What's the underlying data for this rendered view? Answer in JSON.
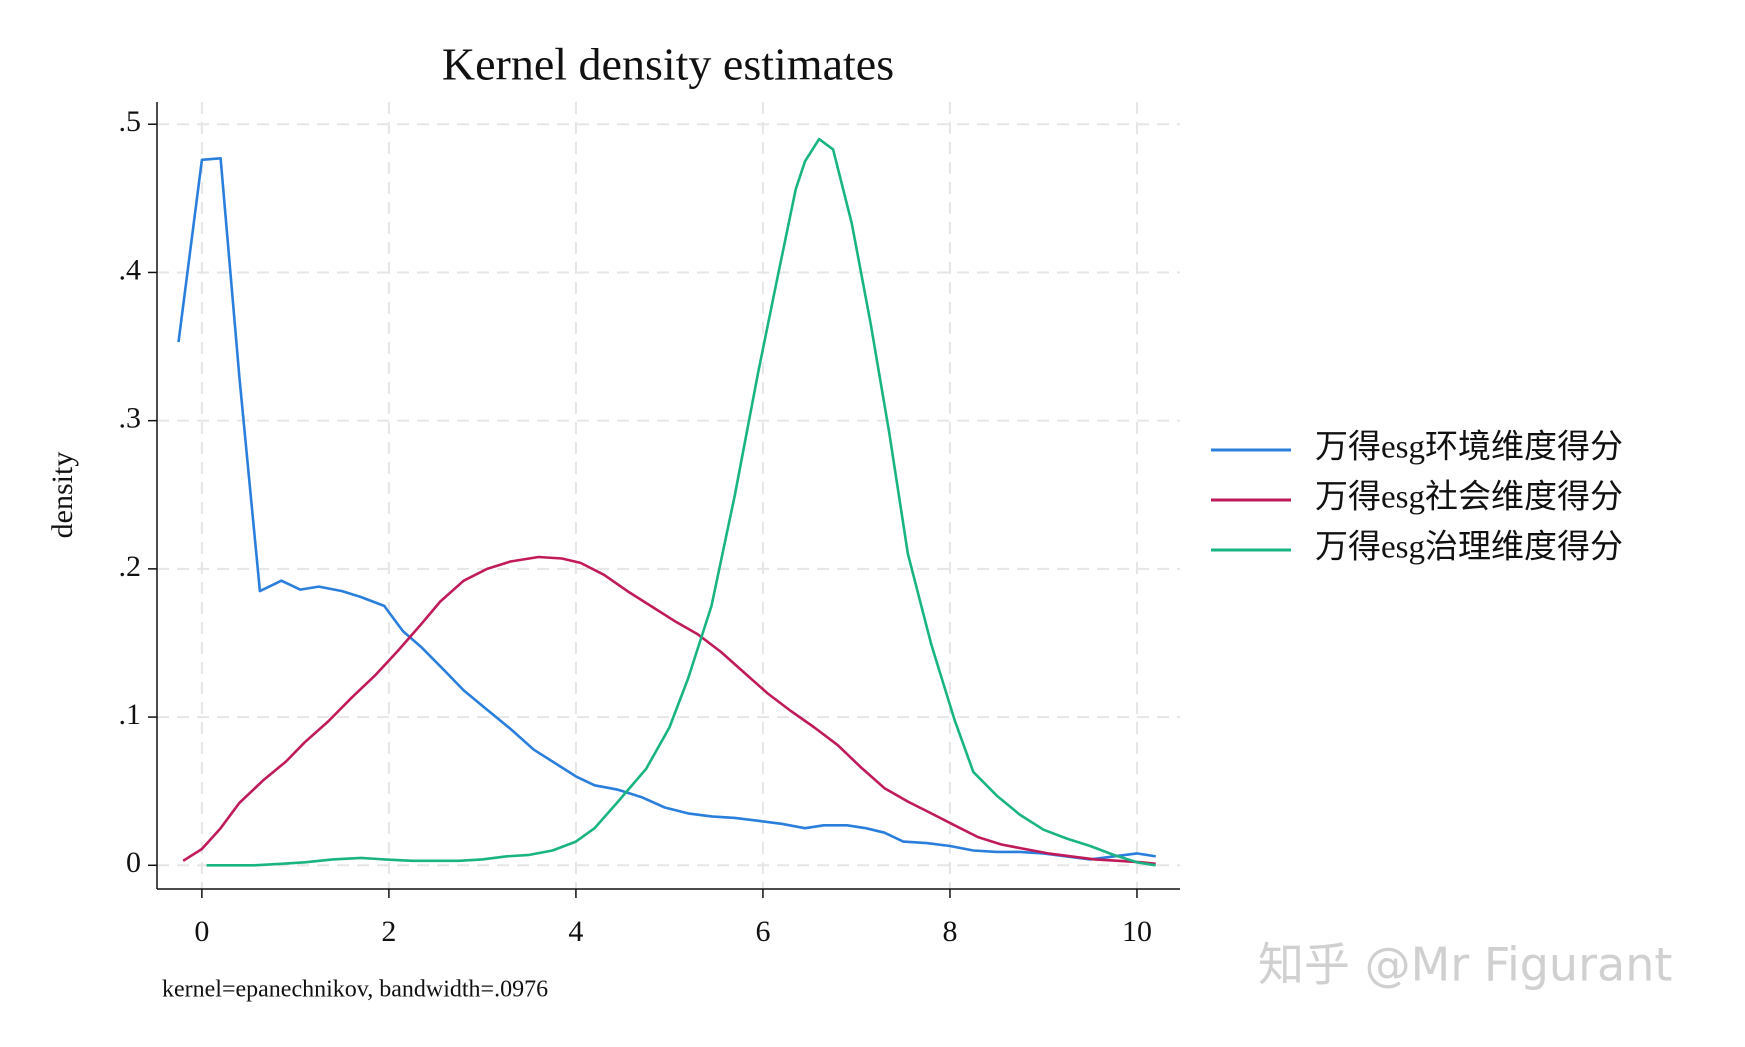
{
  "chart_data": {
    "type": "line",
    "title": "Kernel density estimates",
    "ylabel": "density",
    "note": "kernel=epanechnikov, bandwidth=.0976",
    "watermark": "知乎 @Mr Figurant",
    "xlim": [
      -0.48,
      10.46
    ],
    "ylim": [
      -0.016,
      0.515
    ],
    "xticks": [
      0,
      2,
      4,
      6,
      8,
      10
    ],
    "yticks": [
      0,
      {
        "value": 0.1,
        "label": ".1"
      },
      {
        "value": 0.2,
        "label": ".2"
      },
      {
        "value": 0.3,
        "label": ".3"
      },
      {
        "value": 0.4,
        "label": ".4"
      },
      {
        "value": 0.5,
        "label": ".5"
      }
    ],
    "grid": true,
    "legend": "right",
    "series": [
      {
        "name": "万得esg环境维度得分",
        "color": "#2a7fdc",
        "x": [
          -0.25,
          0,
          0.2,
          0.4,
          0.62,
          0.85,
          1.05,
          1.25,
          1.5,
          1.7,
          1.95,
          2.15,
          2.35,
          2.6,
          2.8,
          3.05,
          3.3,
          3.55,
          3.8,
          4.0,
          4.2,
          4.45,
          4.7,
          4.95,
          5.2,
          5.45,
          5.7,
          5.95,
          6.2,
          6.45,
          6.65,
          6.9,
          7.1,
          7.3,
          7.5,
          7.75,
          8.0,
          8.25,
          8.5,
          8.75,
          9.0,
          9.25,
          9.5,
          9.75,
          10.0,
          10.2
        ],
        "values": [
          0.353,
          0.476,
          0.477,
          0.33,
          0.185,
          0.192,
          0.186,
          0.188,
          0.185,
          0.181,
          0.175,
          0.158,
          0.147,
          0.131,
          0.118,
          0.105,
          0.092,
          0.078,
          0.068,
          0.06,
          0.054,
          0.051,
          0.046,
          0.039,
          0.035,
          0.033,
          0.032,
          0.03,
          0.028,
          0.025,
          0.027,
          0.027,
          0.025,
          0.022,
          0.016,
          0.015,
          0.013,
          0.01,
          0.009,
          0.009,
          0.008,
          0.006,
          0.004,
          0.006,
          0.008,
          0.006
        ]
      },
      {
        "name": "万得esg社会维度得分",
        "color": "#c01a5a",
        "x": [
          -0.2,
          0,
          0.2,
          0.4,
          0.65,
          0.9,
          1.1,
          1.35,
          1.6,
          1.85,
          2.1,
          2.35,
          2.55,
          2.8,
          3.05,
          3.3,
          3.6,
          3.85,
          4.05,
          4.3,
          4.55,
          4.8,
          5.05,
          5.3,
          5.55,
          5.8,
          6.05,
          6.3,
          6.55,
          6.8,
          7.05,
          7.3,
          7.55,
          7.8,
          8.05,
          8.3,
          8.55,
          8.8,
          9.05,
          9.3,
          9.55,
          9.8,
          10.05,
          10.2
        ],
        "values": [
          0.003,
          0.011,
          0.025,
          0.042,
          0.057,
          0.07,
          0.083,
          0.097,
          0.113,
          0.128,
          0.145,
          0.163,
          0.178,
          0.192,
          0.2,
          0.205,
          0.208,
          0.207,
          0.204,
          0.196,
          0.185,
          0.175,
          0.165,
          0.156,
          0.144,
          0.13,
          0.116,
          0.104,
          0.093,
          0.081,
          0.066,
          0.052,
          0.043,
          0.035,
          0.027,
          0.019,
          0.014,
          0.011,
          0.008,
          0.006,
          0.004,
          0.003,
          0.002,
          0.001
        ]
      },
      {
        "name": "万得esg治理维度得分",
        "color": "#1ab483",
        "x": [
          0.05,
          0.55,
          0.85,
          1.1,
          1.4,
          1.7,
          1.95,
          2.25,
          2.5,
          2.75,
          3.0,
          3.25,
          3.5,
          3.75,
          4.0,
          4.2,
          4.45,
          4.75,
          5.0,
          5.2,
          5.45,
          5.7,
          5.95,
          6.15,
          6.35,
          6.45,
          6.6,
          6.75,
          6.95,
          7.15,
          7.35,
          7.55,
          7.8,
          8.05,
          8.25,
          8.5,
          8.75,
          9.0,
          9.25,
          9.5,
          9.75,
          10.0,
          10.2
        ],
        "values": [
          0,
          0,
          0.001,
          0.002,
          0.004,
          0.005,
          0.004,
          0.003,
          0.003,
          0.003,
          0.004,
          0.006,
          0.007,
          0.01,
          0.016,
          0.025,
          0.043,
          0.065,
          0.093,
          0.126,
          0.175,
          0.25,
          0.333,
          0.395,
          0.456,
          0.475,
          0.49,
          0.483,
          0.433,
          0.366,
          0.292,
          0.21,
          0.149,
          0.098,
          0.063,
          0.047,
          0.034,
          0.024,
          0.018,
          0.013,
          0.007,
          0.002,
          0
        ]
      }
    ]
  }
}
